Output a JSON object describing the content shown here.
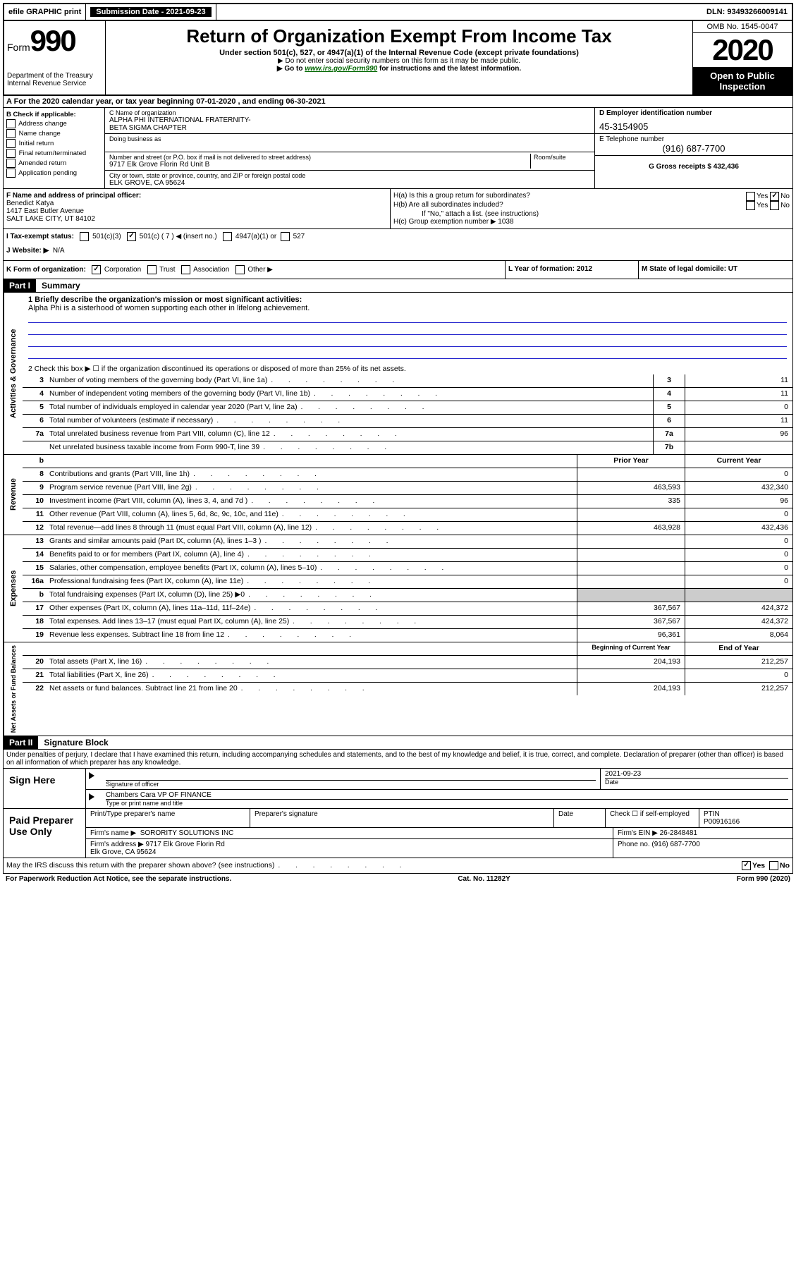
{
  "topbar": {
    "efile": "efile GRAPHIC print",
    "submission_label": "Submission Date - 2021-09-23",
    "dln_label": "DLN: 93493266009141"
  },
  "header": {
    "form_prefix": "Form",
    "form_number": "990",
    "dept": "Department of the Treasury",
    "irs": "Internal Revenue Service",
    "title": "Return of Organization Exempt From Income Tax",
    "subtitle": "Under section 501(c), 527, or 4947(a)(1) of the Internal Revenue Code (except private foundations)",
    "note1": "▶ Do not enter social security numbers on this form as it may be made public.",
    "note2_pre": "▶ Go to ",
    "note2_link": "www.irs.gov/Form990",
    "note2_post": " for instructions and the latest information.",
    "omb": "OMB No. 1545-0047",
    "year": "2020",
    "open": "Open to Public Inspection"
  },
  "section_a": "A  For the 2020 calendar year, or tax year beginning 07-01-2020    , and ending 06-30-2021",
  "col_b": {
    "title": "B Check if applicable:",
    "items": [
      "Address change",
      "Name change",
      "Initial return",
      "Final return/terminated",
      "Amended return",
      "Application pending"
    ]
  },
  "col_c": {
    "name_label": "C Name of organization",
    "name": "ALPHA PHI INTERNATIONAL FRATERNITY-\nBETA SIGMA CHAPTER",
    "dba_label": "Doing business as",
    "addr_label": "Number and street (or P.O. box if mail is not delivered to street address)",
    "addr": "9717 Elk Grove Florin Rd Unit B",
    "room_label": "Room/suite",
    "city_label": "City or town, state or province, country, and ZIP or foreign postal code",
    "city": "ELK GROVE, CA  95624"
  },
  "col_d": {
    "ein_label": "D Employer identification number",
    "ein": "45-3154905",
    "tel_label": "E Telephone number",
    "tel": "(916) 687-7700",
    "gross_label": "G Gross receipts $ 432,436"
  },
  "row_f": {
    "label": "F  Name and address of principal officer:",
    "name": "Benedict Katya",
    "addr1": "1417 East Butler Avenue",
    "addr2": "SALT LAKE CITY, UT  84102"
  },
  "row_h": {
    "ha": "H(a)  Is this a group return for subordinates?",
    "hb": "H(b)  Are all subordinates included?",
    "hb_note": "If \"No,\" attach a list. (see instructions)",
    "hc": "H(c)  Group exemption number ▶  1038"
  },
  "row_i": {
    "label": "I    Tax-exempt status:",
    "opt1": "501(c)(3)",
    "opt2": "501(c) ( 7 ) ◀ (insert no.)",
    "opt3": "4947(a)(1) or",
    "opt4": "527"
  },
  "row_j": {
    "label": "J   Website: ▶",
    "value": "N/A"
  },
  "row_k": {
    "label": "K Form of organization:",
    "opts": [
      "Corporation",
      "Trust",
      "Association",
      "Other ▶"
    ],
    "l": "L Year of formation: 2012",
    "m": "M State of legal domicile: UT"
  },
  "part1": {
    "header": "Part I",
    "title": "Summary",
    "q1_label": "1  Briefly describe the organization's mission or most significant activities:",
    "q1_text": "Alpha Phi is a sisterhood of women supporting each other in lifelong achievement.",
    "q2": "2   Check this box ▶ ☐  if the organization discontinued its operations or disposed of more than 25% of its net assets.",
    "lines_gov": [
      {
        "n": "3",
        "d": "Number of voting members of the governing body (Part VI, line 1a)",
        "k": "3",
        "v": "11"
      },
      {
        "n": "4",
        "d": "Number of independent voting members of the governing body (Part VI, line 1b)",
        "k": "4",
        "v": "11"
      },
      {
        "n": "5",
        "d": "Total number of individuals employed in calendar year 2020 (Part V, line 2a)",
        "k": "5",
        "v": "0"
      },
      {
        "n": "6",
        "d": "Total number of volunteers (estimate if necessary)",
        "k": "6",
        "v": "11"
      },
      {
        "n": "7a",
        "d": "Total unrelated business revenue from Part VIII, column (C), line 12",
        "k": "7a",
        "v": "96"
      },
      {
        "n": "",
        "d": "Net unrelated business taxable income from Form 990-T, line 39",
        "k": "7b",
        "v": ""
      }
    ],
    "col_headers": {
      "b": "b",
      "prior": "Prior Year",
      "curr": "Current Year"
    },
    "lines_rev": [
      {
        "n": "8",
        "d": "Contributions and grants (Part VIII, line 1h)",
        "p": "",
        "c": "0"
      },
      {
        "n": "9",
        "d": "Program service revenue (Part VIII, line 2g)",
        "p": "463,593",
        "c": "432,340"
      },
      {
        "n": "10",
        "d": "Investment income (Part VIII, column (A), lines 3, 4, and 7d )",
        "p": "335",
        "c": "96"
      },
      {
        "n": "11",
        "d": "Other revenue (Part VIII, column (A), lines 5, 6d, 8c, 9c, 10c, and 11e)",
        "p": "",
        "c": "0"
      },
      {
        "n": "12",
        "d": "Total revenue—add lines 8 through 11 (must equal Part VIII, column (A), line 12)",
        "p": "463,928",
        "c": "432,436"
      }
    ],
    "lines_exp": [
      {
        "n": "13",
        "d": "Grants and similar amounts paid (Part IX, column (A), lines 1–3 )",
        "p": "",
        "c": "0"
      },
      {
        "n": "14",
        "d": "Benefits paid to or for members (Part IX, column (A), line 4)",
        "p": "",
        "c": "0"
      },
      {
        "n": "15",
        "d": "Salaries, other compensation, employee benefits (Part IX, column (A), lines 5–10)",
        "p": "",
        "c": "0"
      },
      {
        "n": "16a",
        "d": "Professional fundraising fees (Part IX, column (A), line 11e)",
        "p": "",
        "c": "0"
      },
      {
        "n": "b",
        "d": "Total fundraising expenses (Part IX, column (D), line 25) ▶0",
        "p": "gray",
        "c": "gray"
      },
      {
        "n": "17",
        "d": "Other expenses (Part IX, column (A), lines 11a–11d, 11f–24e)",
        "p": "367,567",
        "c": "424,372"
      },
      {
        "n": "18",
        "d": "Total expenses. Add lines 13–17 (must equal Part IX, column (A), line 25)",
        "p": "367,567",
        "c": "424,372"
      },
      {
        "n": "19",
        "d": "Revenue less expenses. Subtract line 18 from line 12",
        "p": "96,361",
        "c": "8,064"
      }
    ],
    "net_headers": {
      "prior": "Beginning of Current Year",
      "curr": "End of Year"
    },
    "lines_net": [
      {
        "n": "20",
        "d": "Total assets (Part X, line 16)",
        "p": "204,193",
        "c": "212,257"
      },
      {
        "n": "21",
        "d": "Total liabilities (Part X, line 26)",
        "p": "",
        "c": "0"
      },
      {
        "n": "22",
        "d": "Net assets or fund balances. Subtract line 21 from line 20",
        "p": "204,193",
        "c": "212,257"
      }
    ],
    "vlabels": {
      "gov": "Activities & Governance",
      "rev": "Revenue",
      "exp": "Expenses",
      "net": "Net Assets or Fund Balances"
    }
  },
  "part2": {
    "header": "Part II",
    "title": "Signature Block",
    "perjury": "Under penalties of perjury, I declare that I have examined this return, including accompanying schedules and statements, and to the best of my knowledge and belief, it is true, correct, and complete. Declaration of preparer (other than officer) is based on all information of which preparer has any knowledge.",
    "sign_here": "Sign Here",
    "sig_officer": "Signature of officer",
    "date": "2021-09-23",
    "date_label": "Date",
    "officer_name": "Chambers Cara  VP OF FINANCE",
    "type_name": "Type or print name and title",
    "paid": "Paid Preparer Use Only",
    "prep_name_label": "Print/Type preparer's name",
    "prep_sig_label": "Preparer's signature",
    "check_self": "Check ☐ if self-employed",
    "ptin_label": "PTIN",
    "ptin": "P00916166",
    "firm_name_label": "Firm's name    ▶",
    "firm_name": "SORORITY SOLUTIONS INC",
    "firm_ein": "Firm's EIN ▶ 26-2848481",
    "firm_addr_label": "Firm's address ▶",
    "firm_addr": "9717 Elk Grove Florin Rd\nElk Grove, CA  95624",
    "phone": "Phone no. (916) 687-7700",
    "discuss": "May the IRS discuss this return with the preparer shown above? (see instructions)",
    "yes": "Yes",
    "no": "No"
  },
  "footer": {
    "left": "For Paperwork Reduction Act Notice, see the separate instructions.",
    "mid": "Cat. No. 11282Y",
    "right": "Form 990 (2020)"
  }
}
